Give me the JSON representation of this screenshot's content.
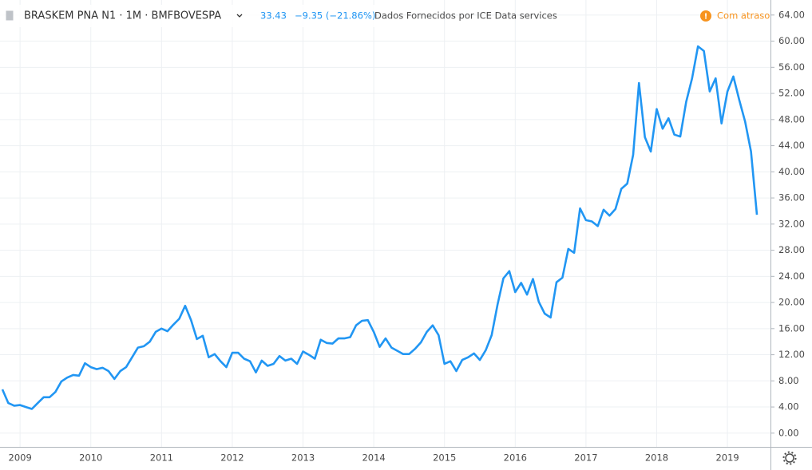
{
  "chart_data": {
    "type": "line",
    "title": "BRASKEM PNA N1 · 1M · BMFBOVESPA",
    "subtitle": "Dados Fornecidos por ICE Data services",
    "annotations": [
      "33.43",
      "−9.35 (−21.86%)",
      "Com atraso"
    ],
    "categories": [
      null,
      null,
      null,
      "2009",
      null,
      null,
      null,
      null,
      null,
      null,
      null,
      null,
      null,
      null,
      null,
      "2010",
      null,
      null,
      null,
      null,
      null,
      null,
      null,
      null,
      null,
      null,
      null,
      "2011",
      null,
      null,
      null,
      null,
      null,
      null,
      null,
      null,
      null,
      null,
      null,
      "2012",
      null,
      null,
      null,
      null,
      null,
      null,
      null,
      null,
      null,
      null,
      null,
      "2013",
      null,
      null,
      null,
      null,
      null,
      null,
      null,
      null,
      null,
      null,
      null,
      "2014",
      null,
      null,
      null,
      null,
      null,
      null,
      null,
      null,
      null,
      null,
      null,
      "2015",
      null,
      null,
      null,
      null,
      null,
      null,
      null,
      null,
      null,
      null,
      null,
      "2016",
      null,
      null,
      null,
      null,
      null,
      null,
      null,
      null,
      null,
      null,
      null,
      "2017",
      null,
      null,
      null,
      null,
      null,
      null,
      null,
      null,
      null,
      null,
      null,
      "2018",
      null,
      null,
      null,
      null,
      null,
      null,
      null,
      null,
      null,
      null,
      null,
      "2019",
      null,
      null,
      null,
      null,
      null
    ],
    "series": [
      {
        "name": "BRASKEM PNA N1",
        "color": "#2196f3",
        "values": [
          6.7,
          4.6,
          4.2,
          4.3,
          4.0,
          3.7,
          4.6,
          5.5,
          5.5,
          6.3,
          7.9,
          8.5,
          8.9,
          8.8,
          10.7,
          10.1,
          9.8,
          10.0,
          9.5,
          8.3,
          9.5,
          10.1,
          11.6,
          13.1,
          13.3,
          14.0,
          15.5,
          16.0,
          15.6,
          16.6,
          17.5,
          19.5,
          17.3,
          14.4,
          14.9,
          11.6,
          12.1,
          11.0,
          10.1,
          12.3,
          12.3,
          11.4,
          11.0,
          9.3,
          11.1,
          10.3,
          10.6,
          11.8,
          11.1,
          11.4,
          10.6,
          12.5,
          12.0,
          11.4,
          14.3,
          13.8,
          13.7,
          14.5,
          14.5,
          14.7,
          16.5,
          17.2,
          17.3,
          15.5,
          13.2,
          14.5,
          13.1,
          12.6,
          12.1,
          12.1,
          12.9,
          13.9,
          15.5,
          16.5,
          15.0,
          10.6,
          11.0,
          9.5,
          11.2,
          11.6,
          12.2,
          11.2,
          12.7,
          15.0,
          19.7,
          23.7,
          24.8,
          21.6,
          23.0,
          21.2,
          23.6,
          20.1,
          18.3,
          17.7,
          23.1,
          23.8,
          28.2,
          27.6,
          34.4,
          32.6,
          32.4,
          31.7,
          34.2,
          33.3,
          34.3,
          37.4,
          38.2,
          42.6,
          53.6,
          45.3,
          43.1,
          49.6,
          46.6,
          48.2,
          45.7,
          45.4,
          50.7,
          54.3,
          59.2,
          58.5,
          52.3,
          54.3,
          47.4,
          52.3,
          54.6,
          51.0,
          47.7,
          43.1,
          33.43
        ]
      }
    ],
    "ylim": [
      -2.1,
      66.3
    ],
    "yticks": [
      {
        "value": 0,
        "label": "0.00"
      },
      {
        "value": 4,
        "label": "4.00"
      },
      {
        "value": 8,
        "label": "8.00"
      },
      {
        "value": 12,
        "label": "12.00"
      },
      {
        "value": 16,
        "label": "16.00"
      },
      {
        "value": 20,
        "label": "20.00"
      },
      {
        "value": 24,
        "label": "24.00"
      },
      {
        "value": 28,
        "label": "28.00"
      },
      {
        "value": 32,
        "label": "32.00"
      },
      {
        "value": 36,
        "label": "36.00"
      },
      {
        "value": 40,
        "label": "40.00"
      },
      {
        "value": 44,
        "label": "44.00"
      },
      {
        "value": 48,
        "label": "48.00"
      },
      {
        "value": 52,
        "label": "52.00"
      },
      {
        "value": 56,
        "label": "56.00"
      },
      {
        "value": 60,
        "label": "60.00"
      },
      {
        "value": 64,
        "label": "64.00"
      }
    ],
    "grid": true
  }
}
